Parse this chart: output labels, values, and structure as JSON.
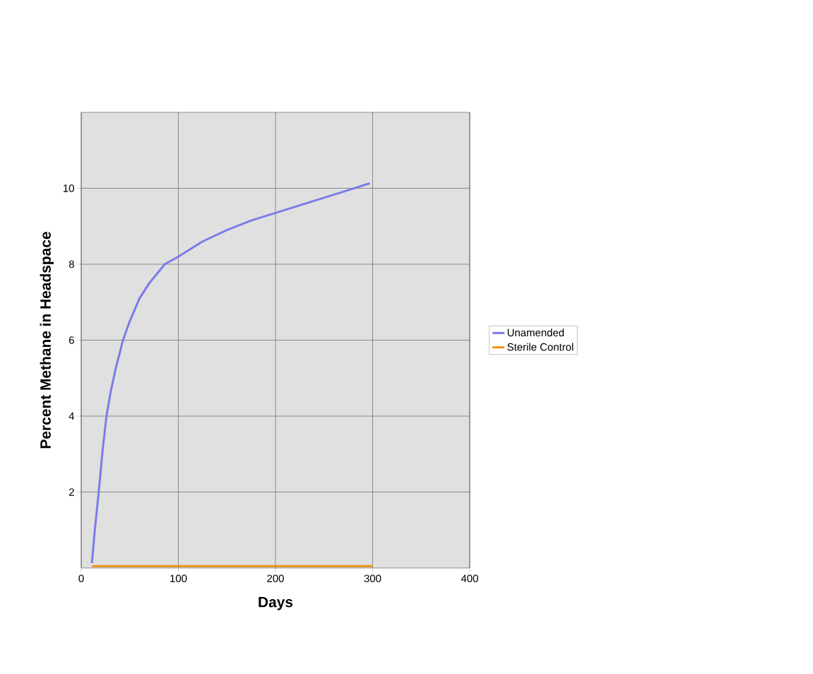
{
  "chart_data": {
    "type": "line",
    "xlabel": "Days",
    "ylabel": "Percent Methane in Headspace",
    "xlim": [
      0,
      400
    ],
    "xticks": [
      0,
      100,
      200,
      300,
      400
    ],
    "ylim": [
      0,
      12
    ],
    "yticks": [
      2,
      4,
      6,
      8,
      10
    ],
    "grid": true,
    "legend": "right",
    "marker": "none",
    "line_style": "solid",
    "series": [
      {
        "name": "Unamended",
        "color": "#7b7bea",
        "x": [
          11,
          14,
          18,
          22,
          26,
          30,
          35,
          43,
          50,
          60,
          70,
          86,
          100,
          125,
          150,
          175,
          200,
          225,
          250,
          275,
          297
        ],
        "values": [
          0.13,
          1.0,
          2.0,
          3.1,
          4.0,
          4.6,
          5.2,
          6.0,
          6.5,
          7.1,
          7.5,
          8.0,
          8.2,
          8.6,
          8.9,
          9.15,
          9.35,
          9.55,
          9.75,
          9.95,
          10.13
        ]
      },
      {
        "name": "Sterile Control",
        "color": "#f0901a",
        "x": [
          11,
          300
        ],
        "values": [
          0.05,
          0.05
        ]
      }
    ]
  }
}
